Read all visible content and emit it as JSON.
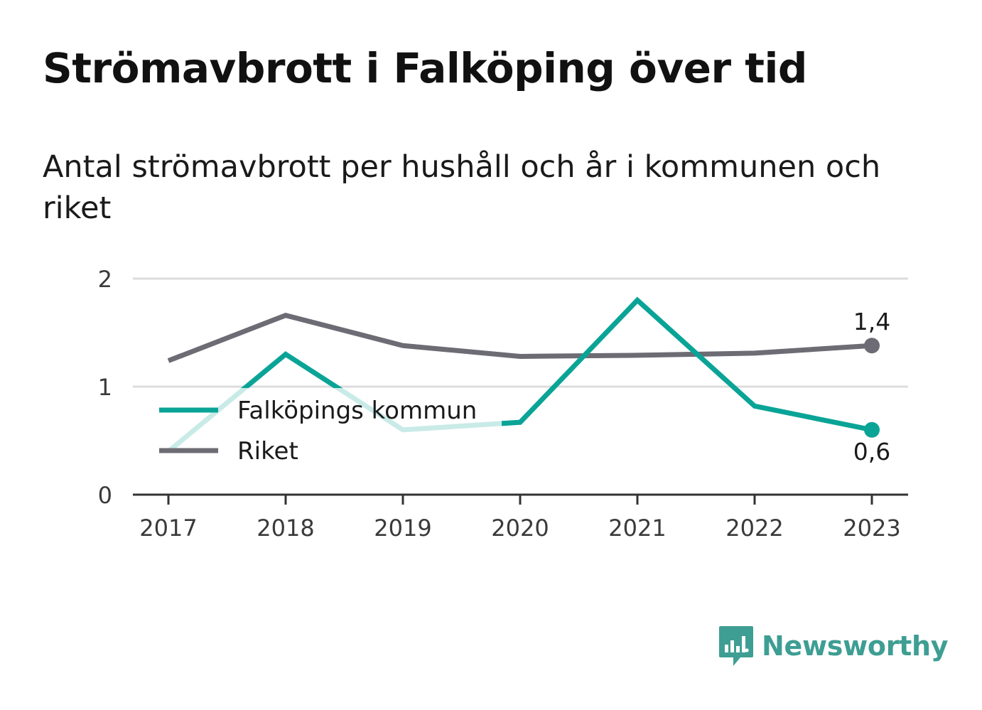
{
  "title": "Strömavbrott i Falköping över tid",
  "subtitle": "Antal strömavbrott per hushåll och år i kommunen och riket",
  "brand": {
    "name": "Newsworthy",
    "icon": "newsworthy-logo-icon"
  },
  "colors": {
    "kommun": "#0aa497",
    "riket": "#6d6b74",
    "grid": "#dcdcdc",
    "axis": "#333333",
    "brand": "#3e9e93"
  },
  "chart_data": {
    "type": "line",
    "x": [
      "2017",
      "2018",
      "2019",
      "2020",
      "2021",
      "2022",
      "2023"
    ],
    "ylim": [
      0,
      2
    ],
    "yticks": [
      "0",
      "1",
      "2"
    ],
    "grid": true,
    "legend": "bottom-left",
    "series": [
      {
        "name": "Falköpings kommun",
        "key": "kommun",
        "values": [
          0.4,
          1.3,
          0.6,
          0.67,
          1.8,
          0.82,
          0.6
        ],
        "end_label": "0,6"
      },
      {
        "name": "Riket",
        "key": "riket",
        "values": [
          1.24,
          1.66,
          1.38,
          1.28,
          1.29,
          1.31,
          1.38
        ],
        "end_label": "1,4"
      }
    ]
  }
}
